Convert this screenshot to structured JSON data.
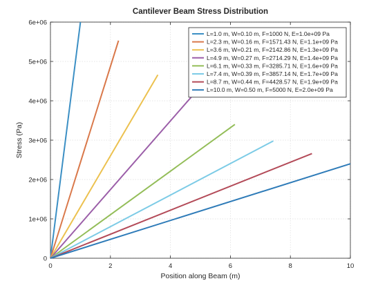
{
  "chart_data": {
    "type": "line",
    "title": "Cantilever Beam Stress Distribution",
    "xlabel": "Position along Beam (m)",
    "ylabel": "Stress (Pa)",
    "xlim": [
      0,
      10
    ],
    "ylim": [
      0,
      6000000
    ],
    "x_ticks": [
      0,
      2,
      4,
      6,
      8,
      10
    ],
    "x_tick_labels": [
      "0",
      "2",
      "4",
      "6",
      "8",
      "10"
    ],
    "y_ticks": [
      0,
      1000000,
      2000000,
      3000000,
      4000000,
      5000000,
      6000000
    ],
    "y_tick_labels": [
      "0",
      "1e+06",
      "2e+06",
      "3e+06",
      "4e+06",
      "5e+06",
      "6e+06"
    ],
    "grid": true,
    "legend_position": "top-right",
    "series": [
      {
        "name": "L=1.0 m, W=0.10 m, F=1000 N, E=1.0e+09 Pa",
        "color": "#3b8fc4",
        "x": [
          0,
          1.0
        ],
        "y": [
          0,
          6000000
        ]
      },
      {
        "name": "L=2.3 m, W=0.16 m, F=1571.43 N, E=1.1e+09 Pa",
        "color": "#d9784a",
        "x": [
          0,
          2.27
        ],
        "y": [
          0,
          5530000
        ]
      },
      {
        "name": "L=3.6 m, W=0.21 m, F=2142.86 N, E=1.3e+09 Pa",
        "color": "#ecc14f",
        "x": [
          0,
          3.58
        ],
        "y": [
          0,
          4660000
        ]
      },
      {
        "name": "L=4.9 m, W=0.27 m, F=2714.29 N, E=1.4e+09 Pa",
        "color": "#9b5ea8",
        "x": [
          0,
          4.87
        ],
        "y": [
          0,
          4250000
        ]
      },
      {
        "name": "L=6.1 m, W=0.33 m, F=3285.71 N, E=1.6e+09 Pa",
        "color": "#93bd58",
        "x": [
          0,
          6.15
        ],
        "y": [
          0,
          3400000
        ]
      },
      {
        "name": "L=7.4 m, W=0.39 m, F=3857.14 N, E=1.7e+09 Pa",
        "color": "#7ccbe6",
        "x": [
          0,
          7.43
        ],
        "y": [
          0,
          2980000
        ]
      },
      {
        "name": "L=8.7 m, W=0.44 m, F=4428.57 N, E=1.9e+09 Pa",
        "color": "#b34a58",
        "x": [
          0,
          8.72
        ],
        "y": [
          0,
          2660000
        ]
      },
      {
        "name": "L=10.0 m, W=0.50 m, F=5000 N, E=2.0e+09 Pa",
        "color": "#2e7bb8",
        "x": [
          0,
          10.0
        ],
        "y": [
          0,
          2400000
        ]
      }
    ]
  }
}
